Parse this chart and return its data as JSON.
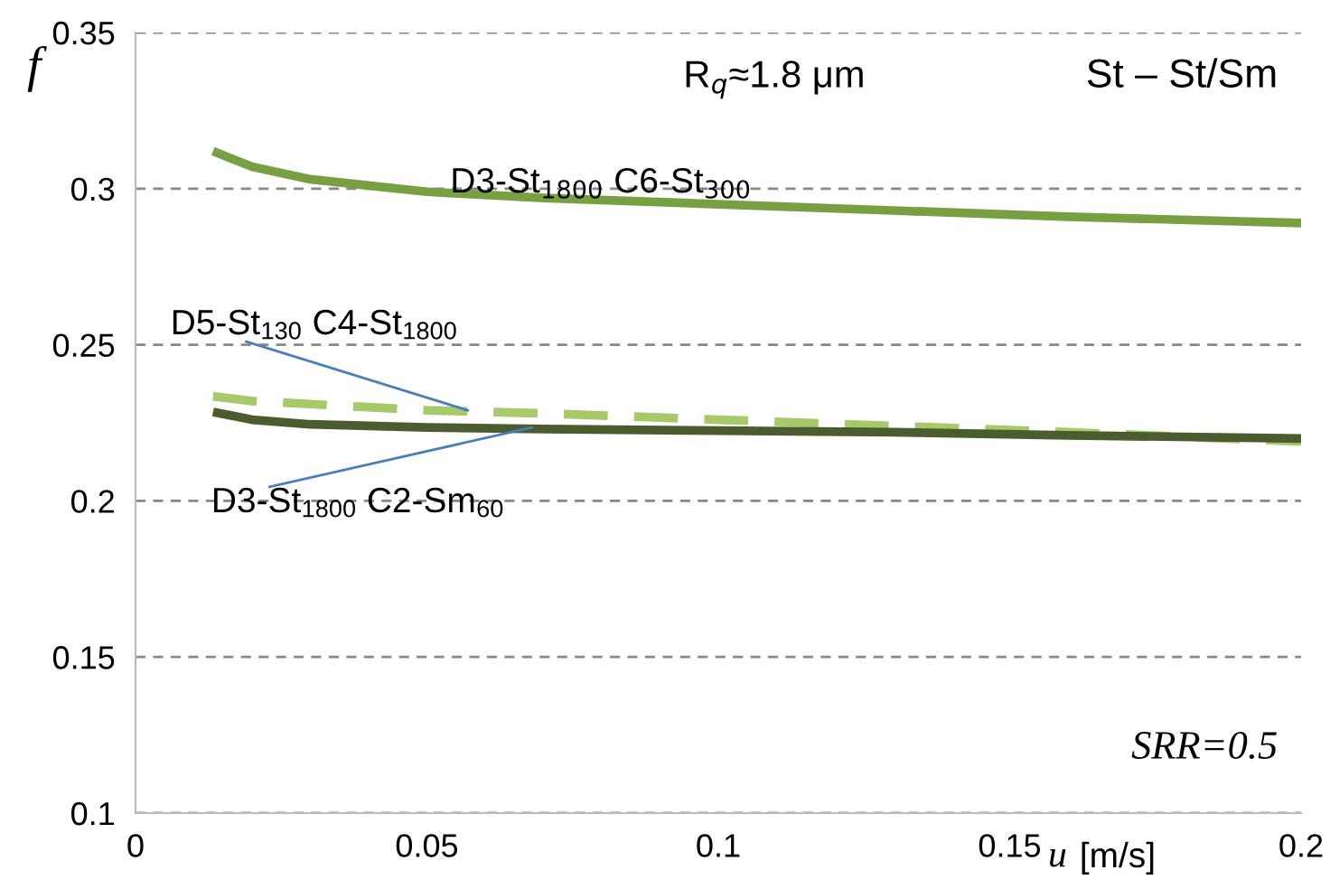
{
  "chart_data": {
    "type": "line",
    "xlabel": "u [m/s]",
    "ylabel": "f",
    "xlim": [
      0,
      0.2
    ],
    "xticks": [
      0,
      0.05,
      0.1,
      0.15,
      0.2
    ],
    "ylim": [
      0.1,
      0.35
    ],
    "yticks": [
      0.1,
      0.15,
      0.2,
      0.25,
      0.3,
      0.35
    ],
    "grid": "y",
    "line_style": "solid",
    "marker": "none",
    "series": [
      {
        "color": "#77a043",
        "x": [
          0.0133,
          0.02,
          0.03,
          0.04,
          0.05,
          0.07,
          0.1,
          0.13,
          0.16,
          0.2
        ],
        "values": [
          0.312,
          0.307,
          0.303,
          0.301,
          0.299,
          0.297,
          0.295,
          0.293,
          0.291,
          0.289
        ]
      },
      {
        "color": "#a6c96a",
        "line_style": "dashed",
        "x": [
          0.0133,
          0.02,
          0.03,
          0.04,
          0.05,
          0.07,
          0.1,
          0.13,
          0.16,
          0.2
        ],
        "values": [
          0.2335,
          0.232,
          0.231,
          0.23,
          0.229,
          0.228,
          0.226,
          0.224,
          0.222,
          0.219
        ]
      },
      {
        "color": "#4b5d2e",
        "x": [
          0.0133,
          0.02,
          0.03,
          0.04,
          0.05,
          0.07,
          0.1,
          0.13,
          0.16,
          0.2
        ],
        "values": [
          0.2285,
          0.226,
          0.2245,
          0.224,
          0.2235,
          0.223,
          0.2225,
          0.222,
          0.221,
          0.22
        ]
      }
    ],
    "annotations": [
      "R$_{q}$≈1.8 μm",
      "St – St/Sm",
      "D3-St$_{1800}$ C6-St$_{300}$",
      {
        "text": "D5-St$_{130}$ C4-St$_{1800}$",
        "x": 0.057,
        "y": 0.229
      },
      {
        "text": "D3-St$_{1800}$ C2-Sm$_{60}$",
        "x": 0.068,
        "y": 0.2235
      },
      "SRR=0.5"
    ]
  }
}
